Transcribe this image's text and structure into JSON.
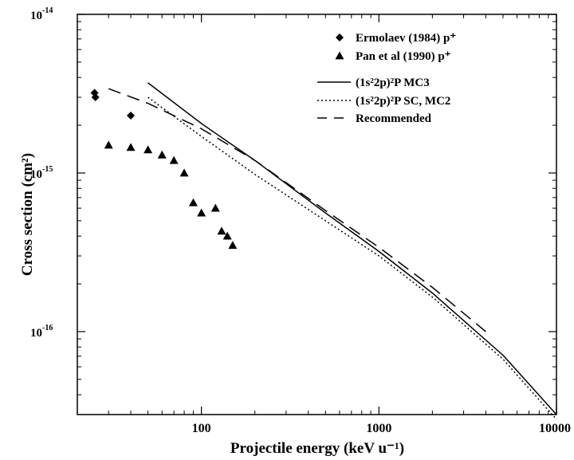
{
  "chart_data": {
    "type": "scatter",
    "title": "",
    "xlabel": "Projectile energy (keV u⁻¹)",
    "ylabel": "Cross section (cm²)",
    "xscale": "log",
    "yscale": "log",
    "xlim": [
      20,
      10000
    ],
    "ylim": [
      3e-17,
      1e-14
    ],
    "x_tick_labels": [
      "100",
      "1000",
      "10000"
    ],
    "y_tick_labels": [
      {
        "base": "10",
        "exp": "-14"
      },
      {
        "base": "10",
        "exp": "-15"
      },
      {
        "base": "10",
        "exp": "-16"
      }
    ],
    "grid": false,
    "legend_position": "top-right",
    "series": [
      {
        "name": "Ermolaev (1984) p⁺",
        "kind": "scatter",
        "marker": "diamond",
        "x": [
          25,
          25.3,
          40
        ],
        "y": [
          3.2e-15,
          3e-15,
          2.3e-15
        ]
      },
      {
        "name": "Pan et al (1990) p⁺",
        "kind": "scatter",
        "marker": "triangle",
        "x": [
          30,
          40,
          50,
          60,
          70,
          80,
          90,
          100,
          120,
          130,
          140,
          150
        ],
        "y": [
          1.5e-15,
          1.45e-15,
          1.4e-15,
          1.3e-15,
          1.2e-15,
          1e-15,
          6.5e-16,
          5.6e-16,
          6e-16,
          4.3e-16,
          4e-16,
          3.5e-16
        ]
      },
      {
        "name": "(1s²2p)²P MC3",
        "kind": "line",
        "dash": "solid",
        "x": [
          50,
          100,
          200,
          500,
          1000,
          2000,
          5000,
          10000
        ],
        "y": [
          3.7e-15,
          2.05e-15,
          1.2e-15,
          5.6e-16,
          3.2e-16,
          1.75e-16,
          7.1e-17,
          3e-17
        ]
      },
      {
        "name": "(1s²2p)²P SC, MC2",
        "kind": "line",
        "dash": "dotted",
        "x": [
          50,
          100,
          200,
          500,
          1000,
          2000,
          5000,
          10000
        ],
        "y": [
          3e-15,
          1.7e-15,
          9.8e-16,
          5e-16,
          3e-16,
          1.65e-16,
          6.7e-17,
          2.8e-17
        ]
      },
      {
        "name": "Recommended",
        "kind": "line",
        "dash": "dashed",
        "x": [
          30,
          50,
          100,
          200,
          500,
          1000,
          2000,
          4000
        ],
        "y": [
          3.4e-15,
          2.75e-15,
          1.9e-15,
          1.2e-15,
          5.8e-16,
          3.4e-16,
          1.9e-16,
          1e-16
        ]
      }
    ]
  }
}
